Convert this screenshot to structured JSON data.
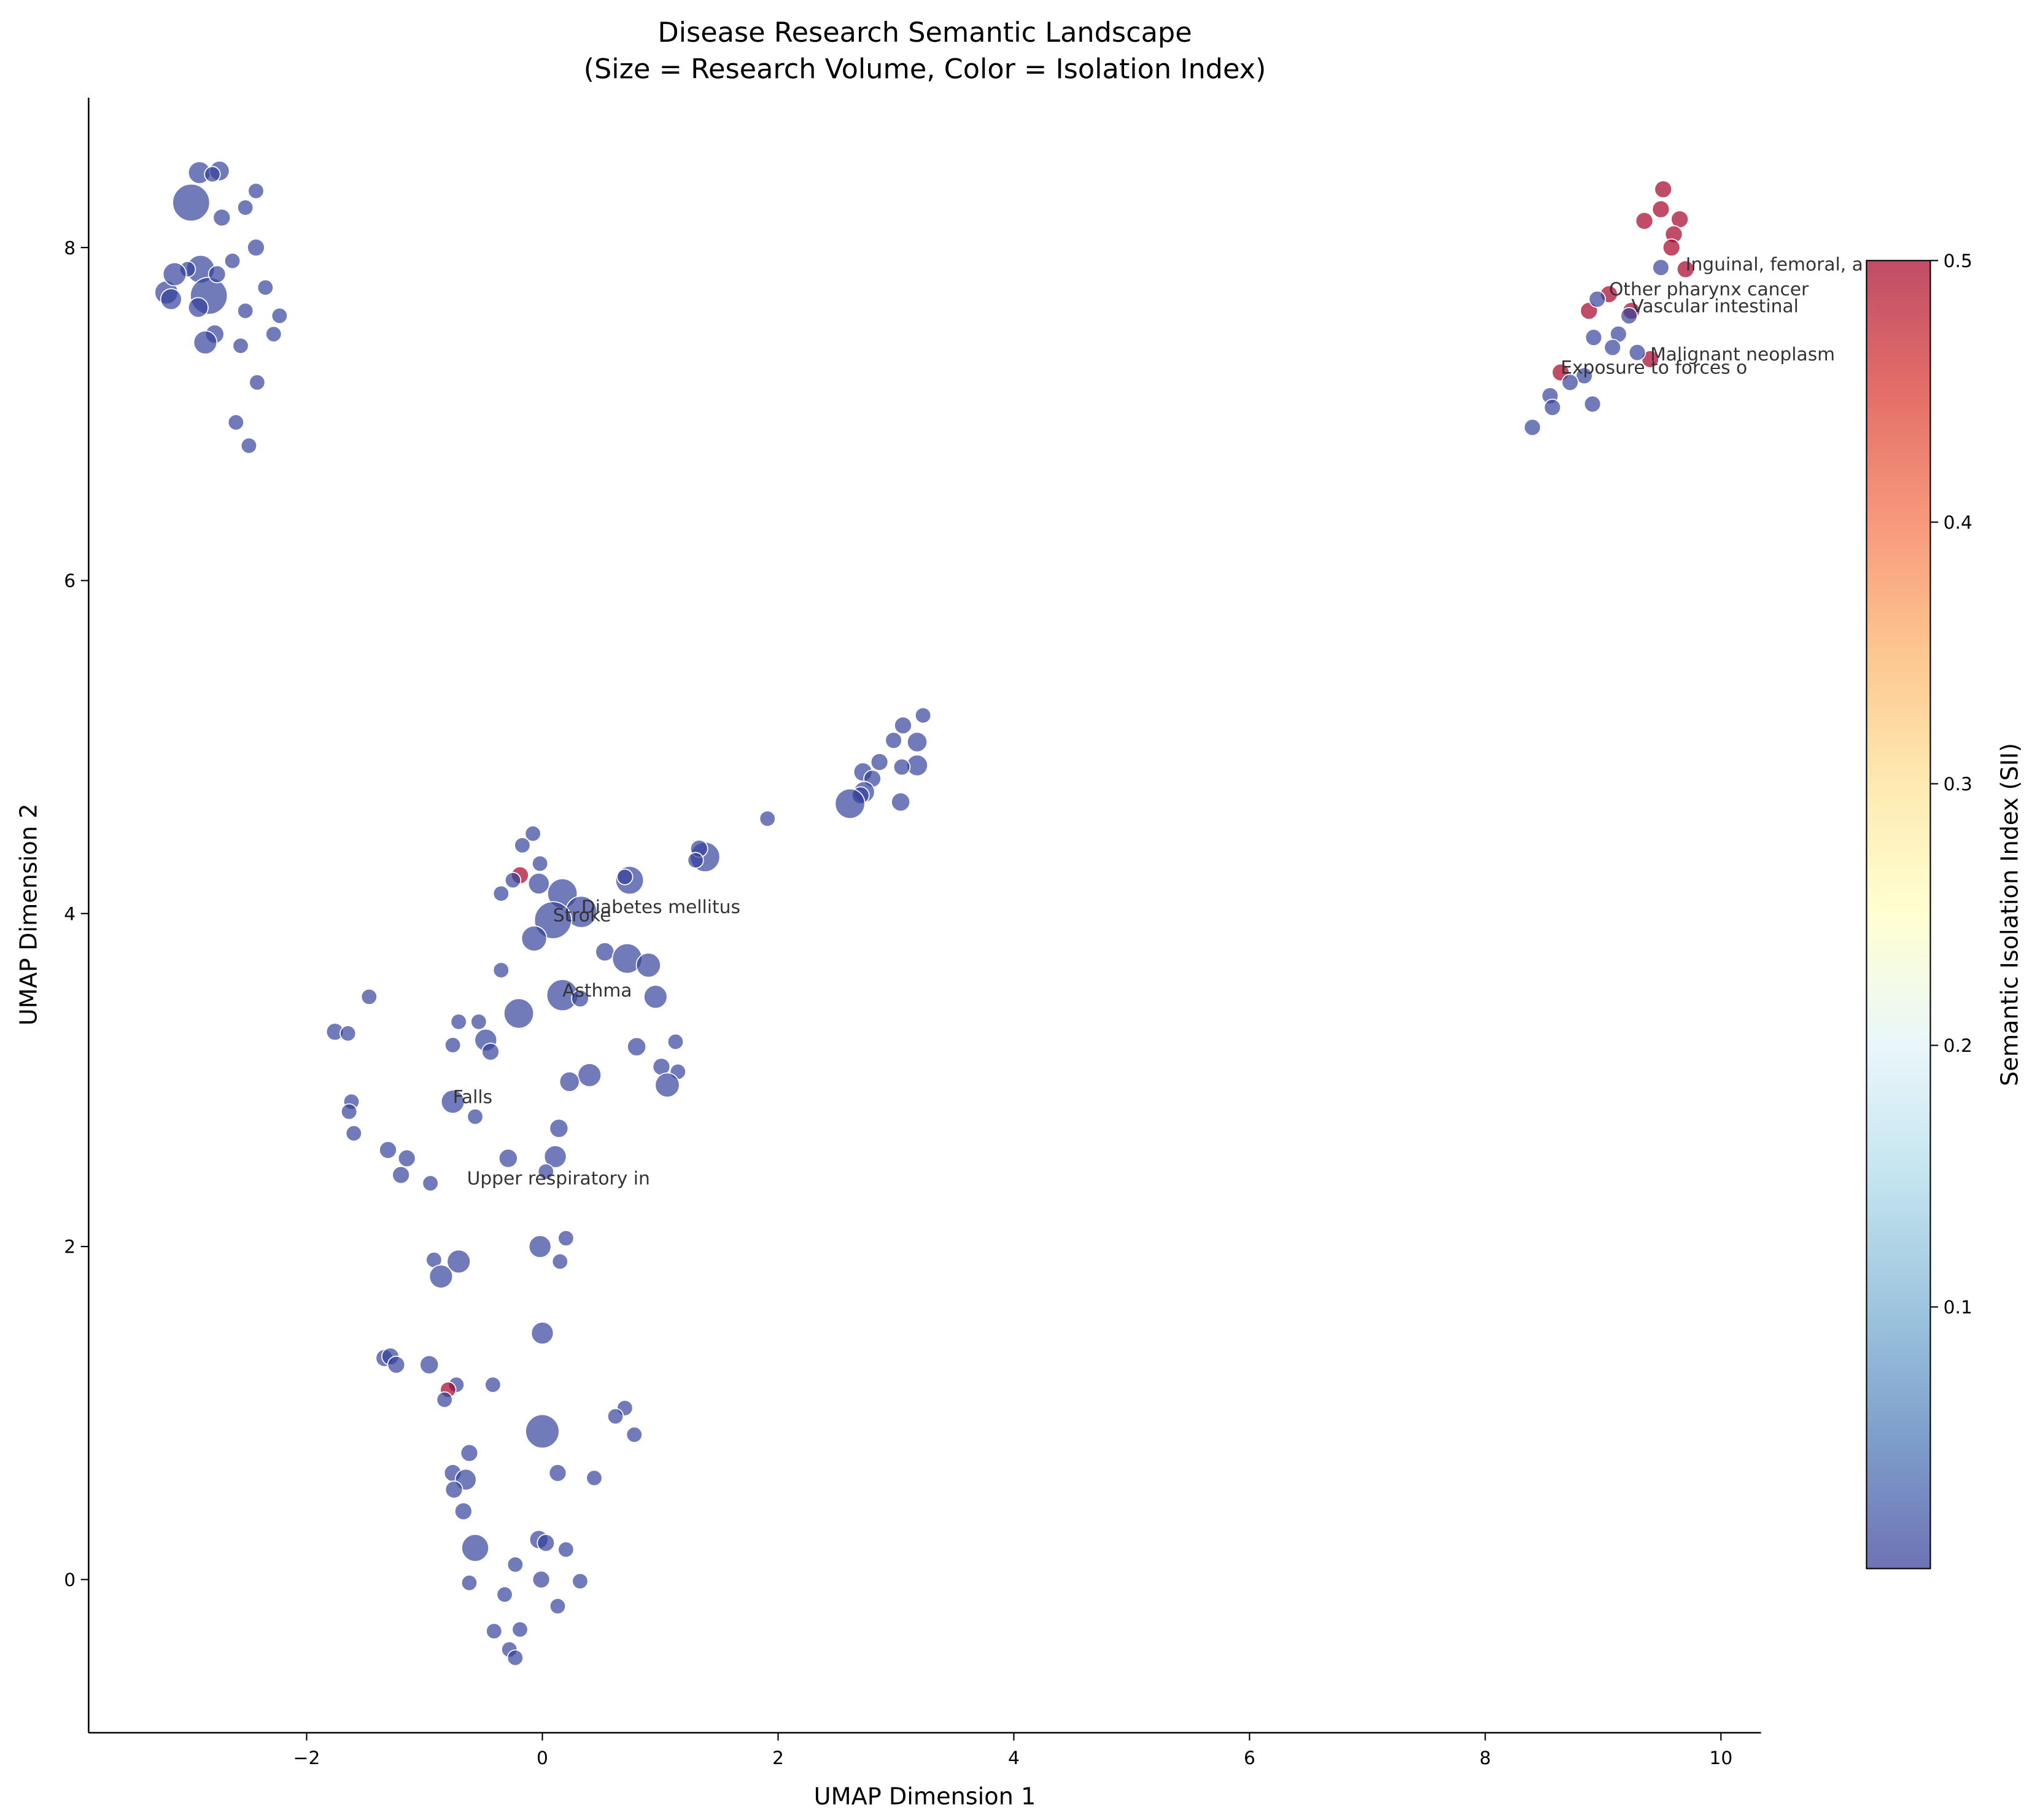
{
  "chart_data": {
    "type": "scatter",
    "title": "Disease Research Semantic Landscape",
    "subtitle": "(Size = Research Volume, Color = Isolation Index)",
    "x_label": "UMAP Dimension 1",
    "y_label": "UMAP Dimension 2",
    "colorbar_label": "Semantic Isolation Index (SII)",
    "xlim": [
      -3.85,
      10.34
    ],
    "ylim": [
      -0.92,
      8.9
    ],
    "xticks": [
      {
        "value": -2,
        "label": "−2"
      },
      0,
      2,
      4,
      6,
      8,
      10
    ],
    "yticks": [
      0,
      2,
      4,
      6,
      8
    ],
    "clim": [
      0,
      0.5
    ],
    "cticks": [
      0.1,
      0.2,
      0.3,
      0.4,
      0.5
    ],
    "colormap": [
      "#313695",
      "#4575b4",
      "#74add1",
      "#abd9e9",
      "#e0f3f8",
      "#ffffbf",
      "#fee090",
      "#fdae61",
      "#f46d43",
      "#d73027",
      "#a50026"
    ],
    "alpha": 0.7,
    "edgecolor": "#ffffff",
    "x": [
      -2.91,
      -2.74,
      -2.8,
      -2.98,
      -2.72,
      -2.43,
      -2.52,
      -2.43,
      -2.63,
      -2.9,
      -2.83,
      -2.76,
      -3.01,
      -3.19,
      -3.12,
      -3.15,
      -2.92,
      -2.35,
      -2.52,
      -2.23,
      -2.78,
      -2.86,
      -2.56,
      -2.28,
      -2.42,
      -2.6,
      -2.49,
      9.51,
      9.49,
      9.35,
      9.65,
      9.6,
      9.58,
      9.7,
      9.05,
      8.88,
      9.24,
      9.4,
      8.64,
      9.49,
      8.95,
      9.22,
      8.92,
      9.13,
      9.08,
      9.29,
      8.84,
      8.72,
      8.55,
      8.57,
      8.91,
      8.4,
      3.23,
      3.06,
      3.18,
      2.98,
      2.86,
      3.18,
      3.05,
      2.72,
      2.8,
      2.73,
      2.7,
      2.61,
      3.04,
      1.91,
      1.38,
      1.33,
      1.3,
      0.74,
      -0.08,
      -0.17,
      -0.02,
      -0.19,
      -0.25,
      -0.35,
      -0.03,
      0.17,
      0.7,
      0.33,
      0.09,
      -0.07,
      0.53,
      0.72,
      0.9,
      -0.35,
      0.17,
      -0.2,
      0.32,
      0.96,
      -0.71,
      -0.54,
      -0.48,
      -0.44,
      -0.76,
      0.8,
      1.13,
      1.01,
      1.15,
      0.4,
      0.23,
      1.06,
      -0.76,
      -1.47,
      -1.76,
      -1.65,
      -1.62,
      -1.64,
      -1.6,
      -1.31,
      -1.15,
      -1.2,
      -0.57,
      0.14,
      -0.29,
      0.11,
      0.03,
      -0.95,
      0.2,
      -0.02,
      -0.92,
      -0.71,
      -0.86,
      0.15,
      0.0,
      -1.34,
      -1.29,
      -1.24,
      -0.96,
      -0.73,
      -0.8,
      -0.83,
      -0.42,
      0.0,
      0.7,
      0.62,
      0.78,
      -0.62,
      -0.76,
      -0.65,
      -0.75,
      -0.67,
      0.13,
      0.44,
      -0.57,
      -0.03,
      0.03,
      0.2,
      -0.23,
      -0.01,
      0.32,
      -0.62,
      -0.32,
      0.13,
      -0.41,
      -0.19,
      -0.28,
      -0.23
    ],
    "y": [
      8.45,
      8.46,
      8.44,
      8.27,
      8.18,
      8.34,
      8.24,
      8.0,
      7.92,
      7.87,
      7.71,
      7.84,
      7.87,
      7.73,
      7.84,
      7.69,
      7.64,
      7.76,
      7.62,
      7.59,
      7.48,
      7.43,
      7.41,
      7.48,
      7.19,
      6.95,
      6.81,
      8.35,
      8.23,
      8.16,
      8.17,
      8.08,
      8.0,
      7.87,
      7.72,
      7.62,
      7.62,
      7.33,
      7.25,
      7.88,
      7.69,
      7.59,
      7.46,
      7.48,
      7.4,
      7.37,
      7.23,
      7.19,
      7.11,
      7.04,
      7.06,
      6.92,
      5.19,
      5.13,
      5.03,
      5.04,
      4.91,
      4.89,
      4.88,
      4.85,
      4.81,
      4.73,
      4.71,
      4.66,
      4.67,
      4.57,
      4.34,
      4.39,
      4.32,
      4.2,
      4.48,
      4.41,
      4.3,
      4.23,
      4.2,
      4.12,
      4.18,
      4.12,
      4.22,
      4.01,
      3.96,
      3.85,
      3.77,
      3.73,
      3.69,
      3.66,
      3.51,
      3.4,
      3.49,
      3.5,
      3.35,
      3.35,
      3.24,
      3.17,
      3.21,
      3.2,
      3.23,
      3.08,
      3.05,
      3.03,
      2.99,
      2.97,
      2.87,
      3.5,
      3.29,
      3.28,
      2.87,
      2.81,
      2.68,
      2.58,
      2.53,
      2.43,
      2.78,
      2.71,
      2.53,
      2.54,
      2.45,
      2.38,
      2.05,
      2.0,
      1.92,
      1.91,
      1.82,
      1.91,
      1.48,
      1.33,
      1.34,
      1.29,
      1.29,
      1.17,
      1.14,
      1.08,
      1.17,
      0.89,
      1.03,
      0.98,
      0.87,
      0.76,
      0.64,
      0.6,
      0.54,
      0.41,
      0.64,
      0.61,
      0.19,
      0.24,
      0.22,
      0.18,
      0.09,
      0.0,
      -0.01,
      -0.02,
      -0.09,
      -0.16,
      -0.31,
      -0.3,
      -0.42,
      -0.47
    ],
    "sizes": [
      100,
      80,
      50,
      280,
      60,
      50,
      50,
      60,
      50,
      160,
      280,
      60,
      50,
      110,
      110,
      90,
      80,
      50,
      50,
      50,
      70,
      110,
      50,
      50,
      50,
      50,
      50,
      60,
      60,
      60,
      60,
      60,
      60,
      60,
      60,
      60,
      60,
      60,
      60,
      55,
      55,
      55,
      55,
      55,
      55,
      55,
      55,
      55,
      55,
      55,
      55,
      55,
      50,
      60,
      80,
      55,
      60,
      90,
      55,
      70,
      60,
      90,
      60,
      180,
      70,
      50,
      180,
      60,
      50,
      160,
      50,
      50,
      50,
      60,
      50,
      50,
      90,
      180,
      50,
      200,
      280,
      130,
      70,
      180,
      120,
      50,
      200,
      180,
      60,
      110,
      50,
      50,
      100,
      60,
      50,
      70,
      50,
      60,
      50,
      110,
      80,
      120,
      110,
      50,
      60,
      50,
      50,
      50,
      50,
      60,
      60,
      60,
      50,
      70,
      70,
      100,
      50,
      50,
      50,
      100,
      50,
      110,
      110,
      50,
      100,
      60,
      60,
      60,
      70,
      50,
      50,
      50,
      50,
      230,
      50,
      50,
      50,
      60,
      60,
      90,
      60,
      60,
      60,
      50,
      150,
      70,
      60,
      50,
      50,
      60,
      50,
      50,
      50,
      50,
      50,
      50,
      50,
      50
    ],
    "sii": [
      0.01,
      0.01,
      0.01,
      0.01,
      0.01,
      0.01,
      0.01,
      0.01,
      0.01,
      0.01,
      0.01,
      0.01,
      0.01,
      0.01,
      0.01,
      0.01,
      0.01,
      0.01,
      0.01,
      0.01,
      0.01,
      0.01,
      0.01,
      0.01,
      0.01,
      0.01,
      0.01,
      0.5,
      0.5,
      0.5,
      0.5,
      0.5,
      0.5,
      0.5,
      0.5,
      0.5,
      0.5,
      0.5,
      0.5,
      0.01,
      0.01,
      0.01,
      0.01,
      0.01,
      0.01,
      0.01,
      0.01,
      0.01,
      0.01,
      0.01,
      0.01,
      0.01,
      0.01,
      0.01,
      0.01,
      0.01,
      0.01,
      0.01,
      0.01,
      0.01,
      0.01,
      0.01,
      0.01,
      0.01,
      0.01,
      0.01,
      0.01,
      0.01,
      0.01,
      0.01,
      0.01,
      0.01,
      0.01,
      0.5,
      0.01,
      0.01,
      0.01,
      0.01,
      0.01,
      0.01,
      0.01,
      0.01,
      0.01,
      0.01,
      0.01,
      0.01,
      0.01,
      0.01,
      0.01,
      0.01,
      0.01,
      0.01,
      0.01,
      0.01,
      0.01,
      0.01,
      0.01,
      0.01,
      0.01,
      0.01,
      0.01,
      0.01,
      0.01,
      0.01,
      0.01,
      0.01,
      0.01,
      0.01,
      0.01,
      0.01,
      0.01,
      0.01,
      0.01,
      0.01,
      0.01,
      0.01,
      0.01,
      0.01,
      0.01,
      0.01,
      0.01,
      0.01,
      0.01,
      0.01,
      0.01,
      0.01,
      0.01,
      0.01,
      0.01,
      0.01,
      0.5,
      0.01,
      0.01,
      0.01,
      0.01,
      0.01,
      0.01,
      0.01,
      0.01,
      0.01,
      0.01,
      0.01,
      0.01,
      0.01,
      0.01,
      0.01,
      0.01,
      0.01,
      0.01,
      0.01,
      0.01,
      0.01,
      0.01,
      0.01,
      0.01,
      0.01,
      0.01,
      0.01
    ],
    "annotations": [
      {
        "text": "Inguinal, femoral, a",
        "x": 9.7,
        "y": 7.87
      },
      {
        "text": "Other pharynx cancer",
        "x": 9.05,
        "y": 7.72
      },
      {
        "text": "Vascular intestinal",
        "x": 9.24,
        "y": 7.62
      },
      {
        "text": "Malignant neoplasm",
        "x": 9.4,
        "y": 7.33
      },
      {
        "text": "Exposure to forces o",
        "x": 8.64,
        "y": 7.25
      },
      {
        "text": "Diabetes mellitus",
        "x": 0.33,
        "y": 4.01
      },
      {
        "text": "Stroke",
        "x": 0.09,
        "y": 3.96
      },
      {
        "text": "Asthma",
        "x": 0.17,
        "y": 3.51
      },
      {
        "text": "Falls",
        "x": -0.76,
        "y": 2.87
      },
      {
        "text": "Upper respiratory in",
        "x": -0.64,
        "y": 2.38
      }
    ]
  }
}
